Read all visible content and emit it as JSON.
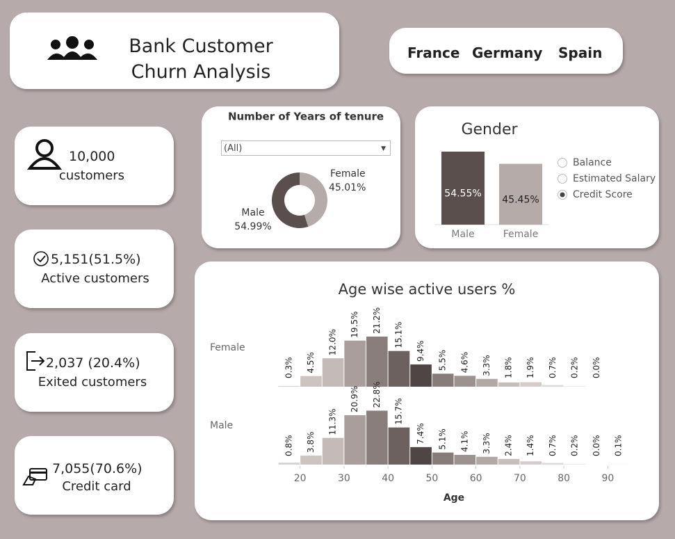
{
  "header": {
    "title": "Bank Customer Churn Analysis"
  },
  "countries": [
    "France",
    "Germany",
    "Spain"
  ],
  "kpis": [
    {
      "value": "10,000",
      "label": "customers"
    },
    {
      "value": "5,151(51.5%)",
      "label": "Active customers"
    },
    {
      "value": "2,037 (20.4%)",
      "label": "Exited customers"
    },
    {
      "value": "7,055(70.6%)",
      "label": "Credit card"
    }
  ],
  "tenure_filter": "(All)",
  "measure_options": {
    "options": [
      "Balance",
      "Estimated Salary",
      "Credit Score"
    ],
    "selected": 2
  },
  "chart_data": [
    {
      "type": "donut",
      "title": "Number of Years of tenure",
      "categories": [
        "Female",
        "Male"
      ],
      "values": [
        45.01,
        54.99
      ],
      "value_labels": [
        "45.01%",
        "54.99%"
      ],
      "colors": [
        "#b5aba8",
        "#5a4f4d"
      ]
    },
    {
      "type": "bar",
      "title": "Gender",
      "categories": [
        "Male",
        "Female"
      ],
      "values": [
        54.55,
        45.45
      ],
      "value_labels": [
        "54.55%",
        "45.45%"
      ],
      "colors": [
        "#5a4f4d",
        "#b5aba8"
      ]
    },
    {
      "type": "histogram",
      "title": "Age wise active users %",
      "x_label": "Age",
      "bins": [
        15,
        20,
        25,
        30,
        35,
        40,
        45,
        50,
        55,
        60,
        65,
        70,
        75,
        80,
        85,
        90,
        95
      ],
      "xlim": [
        15,
        95
      ],
      "xticks": [
        20,
        30,
        40,
        50,
        60,
        70,
        80,
        90
      ],
      "bar_colors": [
        "#d8d0ce",
        "#cdc4c2",
        "#c4bbb8",
        "#a99e9b",
        "#8a7e7c",
        "#6c615f",
        "#4f4544",
        "#877c7a",
        "#9c9290",
        "#b2a9a7",
        "#c6bebc",
        "#d4cdcb",
        "#ddd7d5",
        "#e3dedc",
        "#e7e3e1",
        "#eae6e5"
      ],
      "series": [
        {
          "name": "Female",
          "values": [
            0.3,
            4.5,
            12.0,
            19.5,
            21.2,
            15.1,
            9.4,
            5.5,
            4.6,
            3.3,
            1.8,
            1.9,
            0.7,
            0.2,
            0.0,
            null
          ],
          "value_labels": [
            "0.3%",
            "4.5%",
            "12.0%",
            "19.5%",
            "21.2%",
            "15.1%",
            "9.4%",
            "5.5%",
            "4.6%",
            "3.3%",
            "1.8%",
            "1.9%",
            "0.7%",
            "0.2%",
            "0.0%",
            null
          ]
        },
        {
          "name": "Male",
          "values": [
            0.8,
            3.8,
            11.3,
            20.9,
            22.8,
            15.7,
            7.4,
            5.1,
            4.1,
            3.3,
            2.4,
            1.4,
            0.7,
            0.2,
            0.0,
            0.1
          ],
          "value_labels": [
            "0.8%",
            "3.8%",
            "11.3%",
            "20.9%",
            "22.8%",
            "15.7%",
            "7.4%",
            "5.1%",
            "4.1%",
            "3.3%",
            "2.4%",
            "1.4%",
            "0.7%",
            "0.2%",
            "0.0%",
            "0.1%"
          ]
        }
      ]
    }
  ]
}
